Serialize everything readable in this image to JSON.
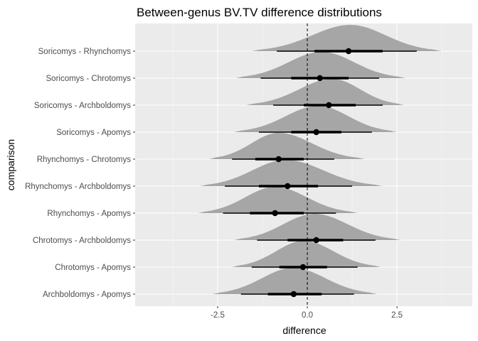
{
  "chart_data": {
    "type": "halfeye",
    "title": "Between-genus BV.TV difference distributions",
    "xlabel": "difference",
    "ylabel": "comparison",
    "xlim": [
      -4.8,
      4.6
    ],
    "x_ticks": [
      -2.5,
      0,
      2.5
    ],
    "x_tick_labels": [
      "-2.5",
      "0.0",
      "2.5"
    ],
    "reference_line": 0,
    "grid": true,
    "panel_background": "#ebebeb",
    "fill_color": "#a6a6a6",
    "categories": [
      "Archboldomys - Apomys",
      "Chrotomys - Apomys",
      "Chrotomys - Archboldomys",
      "Rhynchomys - Apomys",
      "Rhynchomys - Archboldomys",
      "Rhynchomys - Chrotomys",
      "Soricomys - Apomys",
      "Soricomys - Archboldomys",
      "Soricomys - Chrotomys",
      "Soricomys - Rhynchomys"
    ],
    "series": [
      {
        "category": "Archboldomys - Apomys",
        "point": -0.38,
        "interval_66": [
          -1.1,
          0.4
        ],
        "interval_95": [
          -1.85,
          1.3
        ],
        "density_range": [
          -2.65,
          1.95
        ],
        "density_peak": -0.4
      },
      {
        "category": "Chrotomys - Apomys",
        "point": -0.12,
        "interval_66": [
          -0.78,
          0.55
        ],
        "interval_95": [
          -1.55,
          1.4
        ],
        "density_range": [
          -2.1,
          2.05
        ],
        "density_peak": -0.1
      },
      {
        "category": "Chrotomys - Archboldomys",
        "point": 0.25,
        "interval_66": [
          -0.55,
          1.0
        ],
        "interval_95": [
          -1.4,
          1.9
        ],
        "density_range": [
          -2.05,
          2.6
        ],
        "density_peak": 0.2
      },
      {
        "category": "Rhynchomys - Apomys",
        "point": -0.9,
        "interval_66": [
          -1.6,
          -0.1
        ],
        "interval_95": [
          -2.35,
          0.8
        ],
        "density_range": [
          -3.05,
          1.4
        ],
        "density_peak": -0.9
      },
      {
        "category": "Rhynchomys - Archboldomys",
        "point": -0.55,
        "interval_66": [
          -1.35,
          0.3
        ],
        "interval_95": [
          -2.3,
          1.25
        ],
        "density_range": [
          -3.0,
          2.1
        ],
        "density_peak": -0.6
      },
      {
        "category": "Rhynchomys - Chrotomys",
        "point": -0.8,
        "interval_66": [
          -1.45,
          -0.1
        ],
        "interval_95": [
          -2.1,
          0.75
        ],
        "density_range": [
          -2.75,
          1.6
        ],
        "density_peak": -0.8
      },
      {
        "category": "Soricomys - Apomys",
        "point": 0.25,
        "interval_66": [
          -0.45,
          0.95
        ],
        "interval_95": [
          -1.35,
          1.8
        ],
        "density_range": [
          -2.05,
          2.5
        ],
        "density_peak": 0.3
      },
      {
        "category": "Soricomys - Archboldomys",
        "point": 0.6,
        "interval_66": [
          -0.1,
          1.35
        ],
        "interval_95": [
          -0.95,
          2.1
        ],
        "density_range": [
          -1.7,
          2.7
        ],
        "density_peak": 0.7
      },
      {
        "category": "Soricomys - Chrotomys",
        "point": 0.35,
        "interval_66": [
          -0.45,
          1.15
        ],
        "interval_95": [
          -1.3,
          2.0
        ],
        "density_range": [
          -2.0,
          2.75
        ],
        "density_peak": 0.4
      },
      {
        "category": "Soricomys - Rhynchomys",
        "point": 1.15,
        "interval_66": [
          0.2,
          2.1
        ],
        "interval_95": [
          -0.85,
          3.05
        ],
        "density_range": [
          -1.55,
          3.75
        ],
        "density_peak": 1.2
      }
    ]
  }
}
